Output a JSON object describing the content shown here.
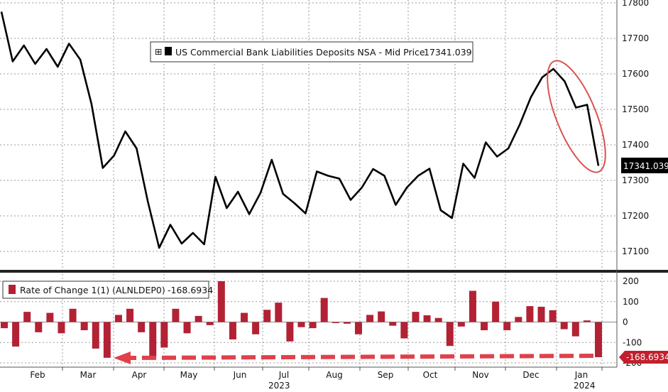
{
  "chart_data": [
    {
      "type": "line",
      "series": [
        {
          "name": "US Commercial Bank Liabilities Deposits NSA - Mid Price",
          "last_value": "17341.039",
          "values": [
            17775,
            17635,
            17680,
            17628,
            17670,
            17620,
            17685,
            17640,
            17515,
            17335,
            17370,
            17438,
            17390,
            17240,
            17110,
            17175,
            17122,
            17152,
            17120,
            17310,
            17222,
            17268,
            17205,
            17265,
            17358,
            17262,
            17236,
            17207,
            17325,
            17313,
            17305,
            17245,
            17280,
            17332,
            17313,
            17231,
            17280,
            17313,
            17333,
            17216,
            17194,
            17347,
            17307,
            17407,
            17367,
            17390,
            17456,
            17534,
            17590,
            17614,
            17579,
            17505,
            17513,
            17341
          ]
        }
      ],
      "ylim": [
        17050,
        17810
      ],
      "y_ticks": [
        "17800",
        "17700",
        "17600",
        "17500",
        "17400",
        "17300",
        "17200",
        "17100"
      ],
      "grid": true,
      "legend": "top-center",
      "last_value_label": "17341.039",
      "annotation": "red ellipse around the final decline",
      "colors": {
        "line": "#000000",
        "annotation": "#d9534f"
      }
    },
    {
      "type": "bar",
      "series": [
        {
          "name": "Rate of Change 1(1) (ALNLDEP0)",
          "last_value": "-168.6934",
          "values": [
            -30,
            -120,
            50,
            -50,
            45,
            -55,
            65,
            -40,
            -130,
            -175,
            35,
            65,
            -50,
            -170,
            -125,
            65,
            -55,
            30,
            -15,
            200,
            -85,
            45,
            -60,
            60,
            95,
            -95,
            -25,
            -30,
            118,
            -5,
            -8,
            -60,
            35,
            52,
            -18,
            -80,
            50,
            33,
            20,
            -117,
            -22,
            153,
            -40,
            100,
            -40,
            25,
            78,
            75,
            58,
            -35,
            -70,
            8,
            -172
          ]
        }
      ],
      "ylim": [
        -200,
        200
      ],
      "y_ticks": [
        "200",
        "100",
        "0",
        "-100",
        "-200"
      ],
      "last_value_label": "-168.6934",
      "annotation": "red dashed arrow pointing left at the final bar",
      "colors": {
        "bar": "#b22234",
        "arrow": "#e0414a"
      }
    }
  ],
  "x_axis": {
    "months": [
      "Feb",
      "Mar",
      "Apr",
      "May",
      "Jun",
      "Jul",
      "Aug",
      "Sep",
      "Oct",
      "Nov",
      "Dec",
      "Jan"
    ],
    "years": [
      "2023",
      "2024"
    ]
  },
  "legend": {
    "top_label": "US Commercial Bank Liabilities Deposits NSA - Mid Price",
    "top_value": "17341.039",
    "bottom_label": "Rate of Change 1(1) (ALNLDEP0)",
    "bottom_value": "-168.6934",
    "expand_symbol": "⊞"
  },
  "price_tags": {
    "top": "17341.039",
    "bottom": "-168.6934"
  }
}
